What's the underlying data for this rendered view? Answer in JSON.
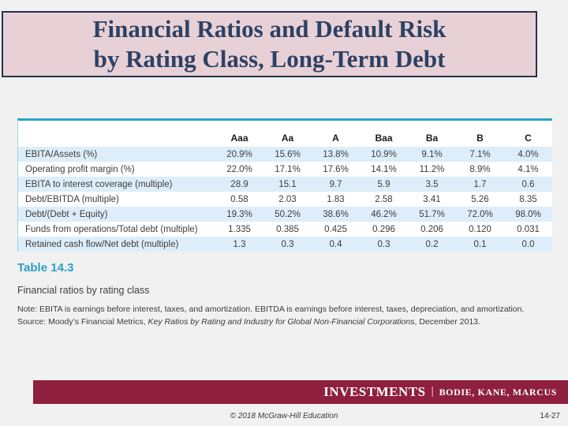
{
  "slide": {
    "title_line1": "Financial Ratios and Default Risk",
    "title_line2": "by Rating Class, Long-Term Debt"
  },
  "table": {
    "columns": [
      "Aaa",
      "Aa",
      "A",
      "Baa",
      "Ba",
      "B",
      "C"
    ],
    "rows": [
      {
        "label": "EBITA/Assets (%)",
        "values": [
          "20.9%",
          "15.6%",
          "13.8%",
          "10.9%",
          "9.1%",
          "7.1%",
          "4.0%"
        ]
      },
      {
        "label": "Operating profit margin (%)",
        "values": [
          "22.0%",
          "17.1%",
          "17.6%",
          "14.1%",
          "11.2%",
          "8.9%",
          "4.1%"
        ]
      },
      {
        "label": "EBITA to interest coverage (multiple)",
        "values": [
          "28.9",
          "15.1",
          "9.7",
          "5.9",
          "3.5",
          "1.7",
          "0.6"
        ]
      },
      {
        "label": "Debt/EBITDA (multiple)",
        "values": [
          "0.58",
          "2.03",
          "1.83",
          "2.58",
          "3.41",
          "5.26",
          "8.35"
        ]
      },
      {
        "label": "Debt/(Debt + Equity)",
        "values": [
          "19.3%",
          "50.2%",
          "38.6%",
          "46.2%",
          "51.7%",
          "72.0%",
          "98.0%"
        ]
      },
      {
        "label": "Funds from operations/Total debt (multiple)",
        "values": [
          "1.335",
          "0.385",
          "0.425",
          "0.296",
          "0.206",
          "0.120",
          "0.031"
        ]
      },
      {
        "label": "Retained cash flow/Net debt (multiple)",
        "values": [
          "1.3",
          "0.3",
          "0.4",
          "0.3",
          "0.2",
          "0.1",
          "0.0"
        ]
      }
    ]
  },
  "caption": {
    "table_number": "Table 14.3",
    "subtitle": "Financial ratios by rating class",
    "note": "Note: EBITA is earnings before interest, taxes, and amortization. EBITDA is earnings before interest, taxes, depreciation, and amortization.",
    "source_prefix": "Source: Moody’s Financial Metrics, ",
    "source_italic": "Key Ratios by Rating and Industry for Global Non-Financial Corporations",
    "source_suffix": ", December 2013."
  },
  "footer": {
    "brand": "INVESTMENTS",
    "separator": "|",
    "authors": "BODIE, KANE, MARCUS",
    "copyright": "© 2018 McGraw-Hill Education",
    "page": "14-27"
  },
  "colors": {
    "slide_background": "#f1f1f2",
    "title_background": "#e7d1d6",
    "title_text": "#2e4164",
    "title_border": "#25334d",
    "table_accent_teal": "#2aa5c6",
    "table_row_alt": "#ddeefa",
    "table_number_teal": "#2aa0c2",
    "brand_bar_maroon": "#8e1f3e"
  }
}
